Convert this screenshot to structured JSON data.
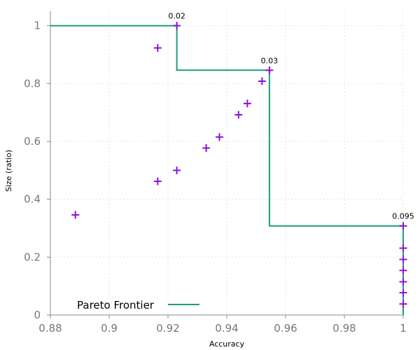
{
  "chart_data": {
    "type": "scatter",
    "xlabel": "Accuracy",
    "ylabel": "Size (ratio)",
    "xlim": [
      0.88,
      1.0
    ],
    "ylim": [
      0,
      1.05
    ],
    "xticks": [
      0.88,
      0.9,
      0.92,
      0.94,
      0.96,
      0.98,
      1
    ],
    "xtick_labels": [
      "0.88",
      "0.9",
      "0.92",
      "0.94",
      "0.96",
      "0.98",
      "1"
    ],
    "yticks": [
      0,
      0.2,
      0.4,
      0.6,
      0.8,
      1
    ],
    "ytick_labels": [
      "0",
      "0.2",
      "0.4",
      "0.6",
      "0.8",
      "1"
    ],
    "grid": true,
    "legend_position": "bottom-left",
    "points": [
      {
        "x": 0.923,
        "y": 1.0
      },
      {
        "x": 0.9165,
        "y": 0.923
      },
      {
        "x": 0.9545,
        "y": 0.846
      },
      {
        "x": 0.952,
        "y": 0.808
      },
      {
        "x": 0.947,
        "y": 0.731
      },
      {
        "x": 0.944,
        "y": 0.692
      },
      {
        "x": 0.9375,
        "y": 0.615
      },
      {
        "x": 0.933,
        "y": 0.577
      },
      {
        "x": 0.923,
        "y": 0.5
      },
      {
        "x": 0.9165,
        "y": 0.462
      },
      {
        "x": 0.8885,
        "y": 0.346
      },
      {
        "x": 1.0,
        "y": 0.308
      },
      {
        "x": 1.0,
        "y": 0.231
      },
      {
        "x": 1.0,
        "y": 0.192
      },
      {
        "x": 1.0,
        "y": 0.154
      },
      {
        "x": 1.0,
        "y": 0.115
      },
      {
        "x": 1.0,
        "y": 0.077
      },
      {
        "x": 1.0,
        "y": 0.038
      }
    ],
    "series": [
      {
        "name": "Pareto Frontier",
        "type": "step",
        "x": [
          0.88,
          0.923,
          0.923,
          0.9545,
          0.9545,
          1.0,
          1.0
        ],
        "y": [
          1.0,
          1.0,
          0.846,
          0.846,
          0.308,
          0.308,
          0.0
        ]
      }
    ],
    "annotations": [
      {
        "text": "0.02",
        "x": 0.923,
        "y": 1.0
      },
      {
        "text": "0.03",
        "x": 0.9545,
        "y": 0.846
      },
      {
        "text": "0.095",
        "x": 1.0,
        "y": 0.308
      }
    ],
    "colors": {
      "points": "#8a14d6",
      "frontier": "#1a9e80",
      "axis": "#888888",
      "grid": "#cccccc"
    }
  }
}
